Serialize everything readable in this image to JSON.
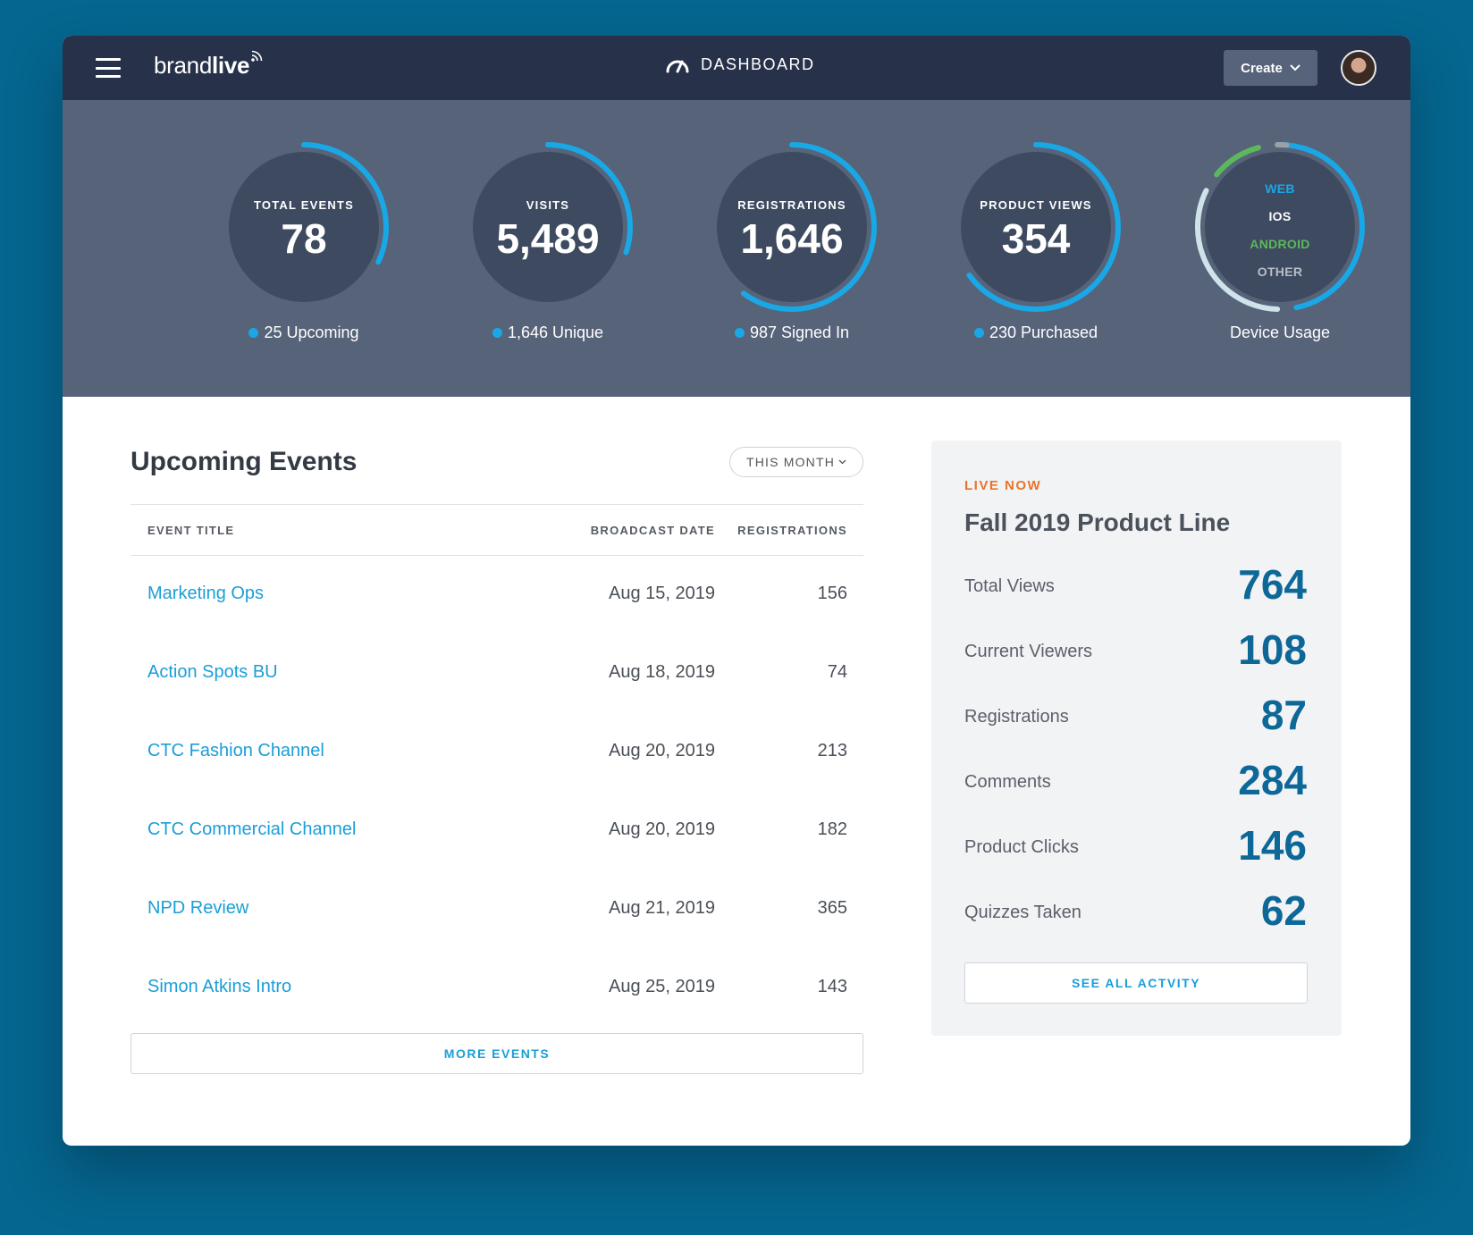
{
  "header": {
    "logo_light": "brand",
    "logo_bold": "live",
    "page_title": "DASHBOARD",
    "create_label": "Create"
  },
  "stats": [
    {
      "label": "TOTAL EVENTS",
      "value": "78",
      "sub": "25 Upcoming",
      "progress": 0.32
    },
    {
      "label": "VISITS",
      "value": "5,489",
      "sub": "1,646  Unique",
      "progress": 0.3
    },
    {
      "label": "REGISTRATIONS",
      "value": "1,646",
      "sub": "987 Signed In",
      "progress": 0.6
    },
    {
      "label": "PRODUCT VIEWS",
      "value": "354",
      "sub": "230 Purchased",
      "progress": 0.65
    }
  ],
  "device_usage": {
    "label": "Device Usage",
    "items": [
      {
        "name": "WEB",
        "color": "#1aa7e6"
      },
      {
        "name": "IOS",
        "color": "#ffffff"
      },
      {
        "name": "ANDROID",
        "color": "#5cb85c"
      },
      {
        "name": "OTHER",
        "color": "#b9bec6"
      }
    ],
    "shares": {
      "web": 0.48,
      "ios": 0.33,
      "android": 0.11,
      "other": 0.03
    }
  },
  "events": {
    "title": "Upcoming Events",
    "filter": "THIS MONTH",
    "columns": [
      "EVENT TITLE",
      "BROADCAST DATE",
      "REGISTRATIONS"
    ],
    "rows": [
      {
        "title": "Marketing Ops",
        "date": "Aug 15, 2019",
        "registrations": "156"
      },
      {
        "title": "Action Spots BU",
        "date": "Aug 18, 2019",
        "registrations": "74"
      },
      {
        "title": "CTC Fashion Channel",
        "date": "Aug 20, 2019",
        "registrations": "213"
      },
      {
        "title": "CTC Commercial Channel",
        "date": "Aug 20, 2019",
        "registrations": "182"
      },
      {
        "title": "NPD Review",
        "date": "Aug 21, 2019",
        "registrations": "365"
      },
      {
        "title": "Simon Atkins Intro",
        "date": "Aug 25, 2019",
        "registrations": "143"
      }
    ],
    "more_label": "MORE EVENTS"
  },
  "live": {
    "tag": "LIVE NOW",
    "title": "Fall 2019 Product Line",
    "metrics": [
      {
        "label": "Total Views",
        "value": "764"
      },
      {
        "label": "Current Viewers",
        "value": "108"
      },
      {
        "label": "Registrations",
        "value": "87"
      },
      {
        "label": "Comments",
        "value": "284"
      },
      {
        "label": "Product Clicks",
        "value": "146"
      },
      {
        "label": "Quizzes Taken",
        "value": "62"
      }
    ],
    "see_all_label": "SEE ALL ACTVITY"
  },
  "colors": {
    "accent": "#1aa7e6",
    "live_orange": "#e8742a",
    "metric_blue": "#0d6898",
    "header_bg": "#27324a",
    "stats_bg": "#566379"
  }
}
